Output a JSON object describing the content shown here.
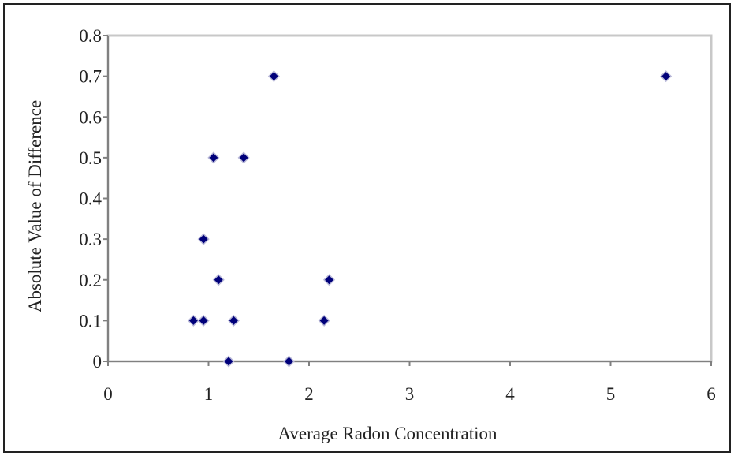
{
  "chart_data": {
    "type": "scatter",
    "title": "",
    "xlabel": "Average Radon Concentration",
    "ylabel": "Absolute Value of Difference",
    "xlim": [
      0,
      6
    ],
    "ylim": [
      0,
      0.8
    ],
    "x_ticks": [
      "0",
      "1",
      "2",
      "3",
      "4",
      "5",
      "6"
    ],
    "y_ticks": [
      "0",
      "0.1",
      "0.2",
      "0.3",
      "0.4",
      "0.5",
      "0.6",
      "0.7",
      "0.8"
    ],
    "grid": false,
    "legend": "none",
    "marker": "diamond",
    "marker_color": "#00007a",
    "points": [
      {
        "x": 0.85,
        "y": 0.1
      },
      {
        "x": 0.95,
        "y": 0.1
      },
      {
        "x": 0.95,
        "y": 0.3
      },
      {
        "x": 1.05,
        "y": 0.5
      },
      {
        "x": 1.1,
        "y": 0.2
      },
      {
        "x": 1.2,
        "y": 0.0
      },
      {
        "x": 1.25,
        "y": 0.1
      },
      {
        "x": 1.35,
        "y": 0.5
      },
      {
        "x": 1.65,
        "y": 0.7
      },
      {
        "x": 1.8,
        "y": 0.0
      },
      {
        "x": 2.15,
        "y": 0.1
      },
      {
        "x": 2.2,
        "y": 0.2
      },
      {
        "x": 5.55,
        "y": 0.7
      }
    ]
  }
}
